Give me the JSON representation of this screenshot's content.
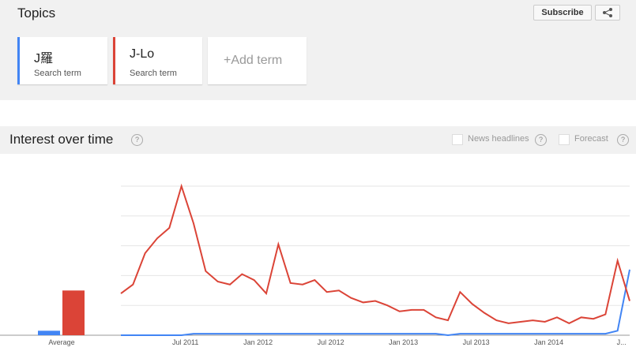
{
  "header": {
    "title": "Topics",
    "subscribe": "Subscribe"
  },
  "terms": [
    {
      "sub": "Search term"
    },
    {
      "sub": "Search term"
    }
  ],
  "add_term": "+Add term",
  "section": {
    "title": "Interest over time",
    "help": "?",
    "news": "News headlines",
    "forecast": "Forecast"
  },
  "chart_data": {
    "type": "line",
    "x": [
      "Feb 2011",
      "Mar 2011",
      "Apr 2011",
      "May 2011",
      "Jun 2011",
      "Jul 2011",
      "Aug 2011",
      "Sep 2011",
      "Oct 2011",
      "Nov 2011",
      "Dec 2011",
      "Jan 2012",
      "Feb 2012",
      "Mar 2012",
      "Apr 2012",
      "May 2012",
      "Jun 2012",
      "Jul 2012",
      "Aug 2012",
      "Sep 2012",
      "Oct 2012",
      "Nov 2012",
      "Dec 2012",
      "Jan 2013",
      "Feb 2013",
      "Mar 2013",
      "Apr 2013",
      "May 2013",
      "Jun 2013",
      "Jul 2013",
      "Aug 2013",
      "Sep 2013",
      "Oct 2013",
      "Nov 2013",
      "Dec 2013",
      "Jan 2014",
      "Feb 2014",
      "Mar 2014",
      "Apr 2014",
      "May 2014",
      "Jun 2014",
      "Jul 2014",
      "Aug 2014"
    ],
    "series": [
      {
        "name": "J羅",
        "color": "#4285f4",
        "values": [
          0,
          0,
          0,
          0,
          0,
          0,
          1,
          1,
          1,
          1,
          1,
          1,
          1,
          1,
          1,
          1,
          1,
          1,
          1,
          1,
          1,
          1,
          1,
          1,
          1,
          1,
          1,
          0,
          1,
          1,
          1,
          1,
          1,
          1,
          1,
          1,
          1,
          1,
          1,
          1,
          1,
          3,
          44
        ]
      },
      {
        "name": "J-Lo",
        "color": "#db4437",
        "values": [
          28,
          34,
          55,
          65,
          72,
          100,
          75,
          43,
          36,
          34,
          41,
          37,
          28,
          61,
          35,
          34,
          37,
          29,
          30,
          25,
          22,
          23,
          20,
          16,
          17,
          17,
          12,
          10,
          29,
          21,
          15,
          10,
          8,
          9,
          10,
          9,
          12,
          8,
          12,
          11,
          14,
          50,
          23
        ]
      }
    ],
    "averages": {
      "label": "Average",
      "values": [
        3,
        30
      ]
    },
    "ylim": [
      0,
      100
    ],
    "yticks": [
      0,
      20,
      40,
      60,
      80,
      100
    ],
    "xticks": [
      {
        "value": "Jul 2011",
        "label": "Jul 2011"
      },
      {
        "value": "Jan 2012",
        "label": "Jan 2012"
      },
      {
        "value": "Jul 2012",
        "label": "Jul 2012"
      },
      {
        "value": "Jan 2013",
        "label": "Jan 2013"
      },
      {
        "value": "Jul 2013",
        "label": "Jul 2013"
      },
      {
        "value": "Jan 2014",
        "label": "Jan 2014"
      },
      {
        "value": "Jul 2014",
        "label": "J..."
      }
    ],
    "grid": true
  }
}
